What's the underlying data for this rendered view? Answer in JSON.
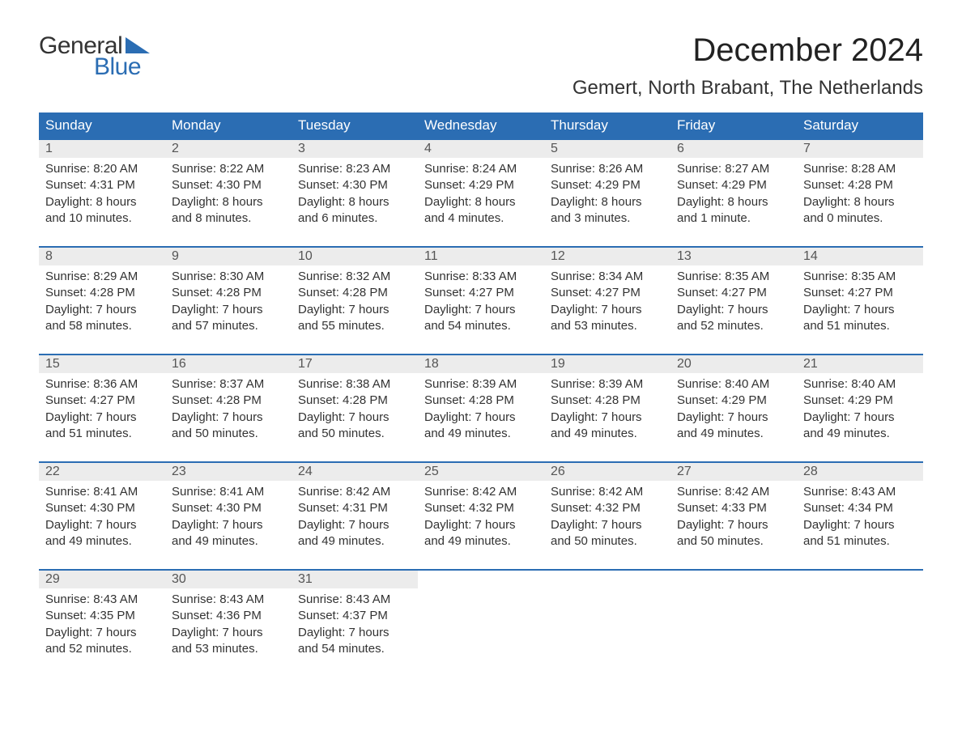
{
  "logo": {
    "text1": "General",
    "text2": "Blue",
    "triangle_color": "#2b6db3"
  },
  "title": {
    "month": "December 2024",
    "location": "Gemert, North Brabant, The Netherlands"
  },
  "colors": {
    "header_bg": "#2b6db3",
    "header_text": "#ffffff",
    "daynum_bg": "#ececec",
    "daynum_text": "#555555",
    "body_text": "#333333",
    "week_border": "#2b6db3"
  },
  "days_of_week": [
    "Sunday",
    "Monday",
    "Tuesday",
    "Wednesday",
    "Thursday",
    "Friday",
    "Saturday"
  ],
  "weeks": [
    [
      {
        "n": "1",
        "sr": "Sunrise: 8:20 AM",
        "ss": "Sunset: 4:31 PM",
        "d1": "Daylight: 8 hours",
        "d2": "and 10 minutes."
      },
      {
        "n": "2",
        "sr": "Sunrise: 8:22 AM",
        "ss": "Sunset: 4:30 PM",
        "d1": "Daylight: 8 hours",
        "d2": "and 8 minutes."
      },
      {
        "n": "3",
        "sr": "Sunrise: 8:23 AM",
        "ss": "Sunset: 4:30 PM",
        "d1": "Daylight: 8 hours",
        "d2": "and 6 minutes."
      },
      {
        "n": "4",
        "sr": "Sunrise: 8:24 AM",
        "ss": "Sunset: 4:29 PM",
        "d1": "Daylight: 8 hours",
        "d2": "and 4 minutes."
      },
      {
        "n": "5",
        "sr": "Sunrise: 8:26 AM",
        "ss": "Sunset: 4:29 PM",
        "d1": "Daylight: 8 hours",
        "d2": "and 3 minutes."
      },
      {
        "n": "6",
        "sr": "Sunrise: 8:27 AM",
        "ss": "Sunset: 4:29 PM",
        "d1": "Daylight: 8 hours",
        "d2": "and 1 minute."
      },
      {
        "n": "7",
        "sr": "Sunrise: 8:28 AM",
        "ss": "Sunset: 4:28 PM",
        "d1": "Daylight: 8 hours",
        "d2": "and 0 minutes."
      }
    ],
    [
      {
        "n": "8",
        "sr": "Sunrise: 8:29 AM",
        "ss": "Sunset: 4:28 PM",
        "d1": "Daylight: 7 hours",
        "d2": "and 58 minutes."
      },
      {
        "n": "9",
        "sr": "Sunrise: 8:30 AM",
        "ss": "Sunset: 4:28 PM",
        "d1": "Daylight: 7 hours",
        "d2": "and 57 minutes."
      },
      {
        "n": "10",
        "sr": "Sunrise: 8:32 AM",
        "ss": "Sunset: 4:28 PM",
        "d1": "Daylight: 7 hours",
        "d2": "and 55 minutes."
      },
      {
        "n": "11",
        "sr": "Sunrise: 8:33 AM",
        "ss": "Sunset: 4:27 PM",
        "d1": "Daylight: 7 hours",
        "d2": "and 54 minutes."
      },
      {
        "n": "12",
        "sr": "Sunrise: 8:34 AM",
        "ss": "Sunset: 4:27 PM",
        "d1": "Daylight: 7 hours",
        "d2": "and 53 minutes."
      },
      {
        "n": "13",
        "sr": "Sunrise: 8:35 AM",
        "ss": "Sunset: 4:27 PM",
        "d1": "Daylight: 7 hours",
        "d2": "and 52 minutes."
      },
      {
        "n": "14",
        "sr": "Sunrise: 8:35 AM",
        "ss": "Sunset: 4:27 PM",
        "d1": "Daylight: 7 hours",
        "d2": "and 51 minutes."
      }
    ],
    [
      {
        "n": "15",
        "sr": "Sunrise: 8:36 AM",
        "ss": "Sunset: 4:27 PM",
        "d1": "Daylight: 7 hours",
        "d2": "and 51 minutes."
      },
      {
        "n": "16",
        "sr": "Sunrise: 8:37 AM",
        "ss": "Sunset: 4:28 PM",
        "d1": "Daylight: 7 hours",
        "d2": "and 50 minutes."
      },
      {
        "n": "17",
        "sr": "Sunrise: 8:38 AM",
        "ss": "Sunset: 4:28 PM",
        "d1": "Daylight: 7 hours",
        "d2": "and 50 minutes."
      },
      {
        "n": "18",
        "sr": "Sunrise: 8:39 AM",
        "ss": "Sunset: 4:28 PM",
        "d1": "Daylight: 7 hours",
        "d2": "and 49 minutes."
      },
      {
        "n": "19",
        "sr": "Sunrise: 8:39 AM",
        "ss": "Sunset: 4:28 PM",
        "d1": "Daylight: 7 hours",
        "d2": "and 49 minutes."
      },
      {
        "n": "20",
        "sr": "Sunrise: 8:40 AM",
        "ss": "Sunset: 4:29 PM",
        "d1": "Daylight: 7 hours",
        "d2": "and 49 minutes."
      },
      {
        "n": "21",
        "sr": "Sunrise: 8:40 AM",
        "ss": "Sunset: 4:29 PM",
        "d1": "Daylight: 7 hours",
        "d2": "and 49 minutes."
      }
    ],
    [
      {
        "n": "22",
        "sr": "Sunrise: 8:41 AM",
        "ss": "Sunset: 4:30 PM",
        "d1": "Daylight: 7 hours",
        "d2": "and 49 minutes."
      },
      {
        "n": "23",
        "sr": "Sunrise: 8:41 AM",
        "ss": "Sunset: 4:30 PM",
        "d1": "Daylight: 7 hours",
        "d2": "and 49 minutes."
      },
      {
        "n": "24",
        "sr": "Sunrise: 8:42 AM",
        "ss": "Sunset: 4:31 PM",
        "d1": "Daylight: 7 hours",
        "d2": "and 49 minutes."
      },
      {
        "n": "25",
        "sr": "Sunrise: 8:42 AM",
        "ss": "Sunset: 4:32 PM",
        "d1": "Daylight: 7 hours",
        "d2": "and 49 minutes."
      },
      {
        "n": "26",
        "sr": "Sunrise: 8:42 AM",
        "ss": "Sunset: 4:32 PM",
        "d1": "Daylight: 7 hours",
        "d2": "and 50 minutes."
      },
      {
        "n": "27",
        "sr": "Sunrise: 8:42 AM",
        "ss": "Sunset: 4:33 PM",
        "d1": "Daylight: 7 hours",
        "d2": "and 50 minutes."
      },
      {
        "n": "28",
        "sr": "Sunrise: 8:43 AM",
        "ss": "Sunset: 4:34 PM",
        "d1": "Daylight: 7 hours",
        "d2": "and 51 minutes."
      }
    ],
    [
      {
        "n": "29",
        "sr": "Sunrise: 8:43 AM",
        "ss": "Sunset: 4:35 PM",
        "d1": "Daylight: 7 hours",
        "d2": "and 52 minutes."
      },
      {
        "n": "30",
        "sr": "Sunrise: 8:43 AM",
        "ss": "Sunset: 4:36 PM",
        "d1": "Daylight: 7 hours",
        "d2": "and 53 minutes."
      },
      {
        "n": "31",
        "sr": "Sunrise: 8:43 AM",
        "ss": "Sunset: 4:37 PM",
        "d1": "Daylight: 7 hours",
        "d2": "and 54 minutes."
      },
      null,
      null,
      null,
      null
    ]
  ]
}
